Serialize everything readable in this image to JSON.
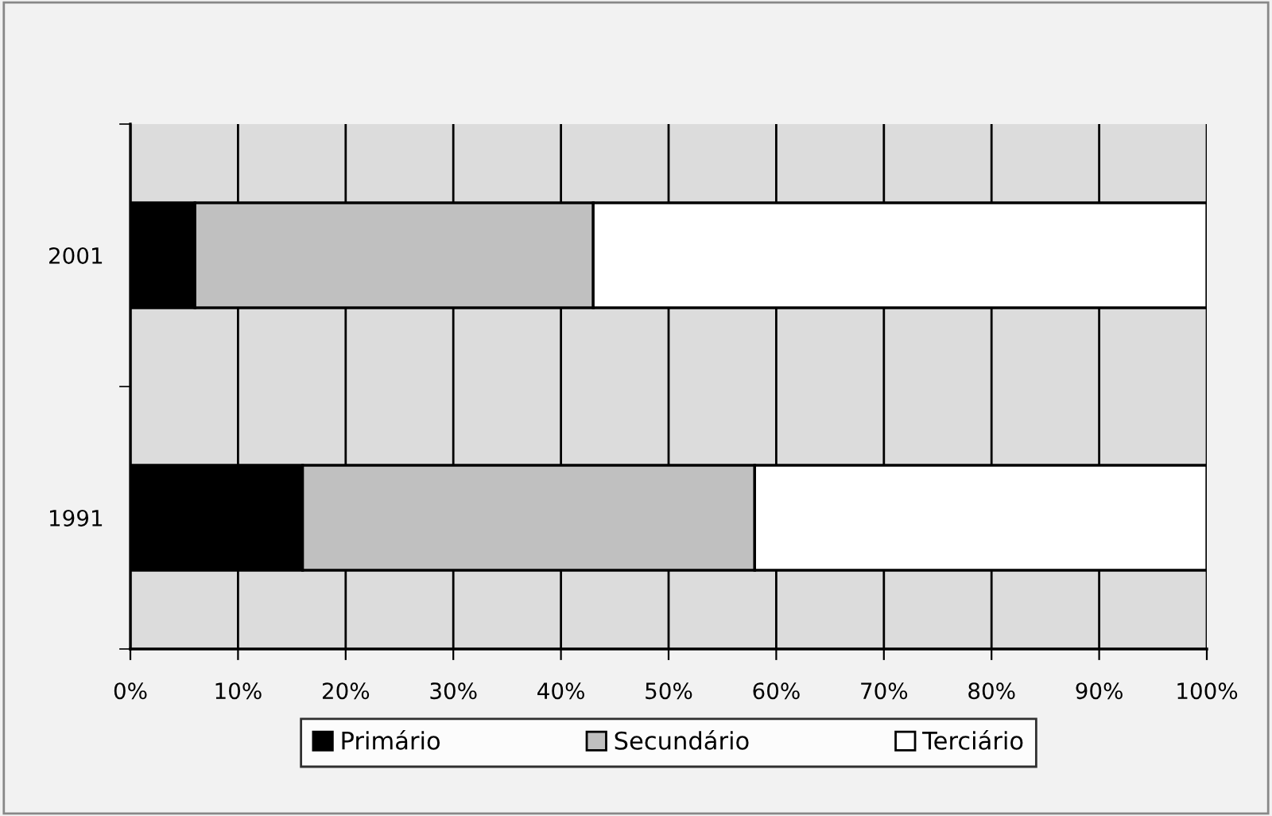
{
  "chart_data": {
    "type": "bar",
    "orientation": "horizontal",
    "stacked": true,
    "categories": [
      "2001",
      "1991"
    ],
    "series": [
      {
        "name": "Primário",
        "color": "#000000",
        "values": [
          6,
          16
        ]
      },
      {
        "name": "Secundário",
        "color": "#c0c0c0",
        "values": [
          37,
          42
        ]
      },
      {
        "name": "Terciário",
        "color": "#ffffff",
        "values": [
          57,
          42
        ]
      }
    ],
    "xlim": [
      0,
      100
    ],
    "xticks": [
      {
        "value": 0,
        "label": "0%"
      },
      {
        "value": 10,
        "label": "10%"
      },
      {
        "value": 20,
        "label": "20%"
      },
      {
        "value": 30,
        "label": "30%"
      },
      {
        "value": 40,
        "label": "40%"
      },
      {
        "value": 50,
        "label": "50%"
      },
      {
        "value": 60,
        "label": "60%"
      },
      {
        "value": 70,
        "label": "70%"
      },
      {
        "value": 80,
        "label": "80%"
      },
      {
        "value": 90,
        "label": "90%"
      },
      {
        "value": 100,
        "label": "100%"
      }
    ],
    "grid": "x",
    "legend": "bottom"
  }
}
